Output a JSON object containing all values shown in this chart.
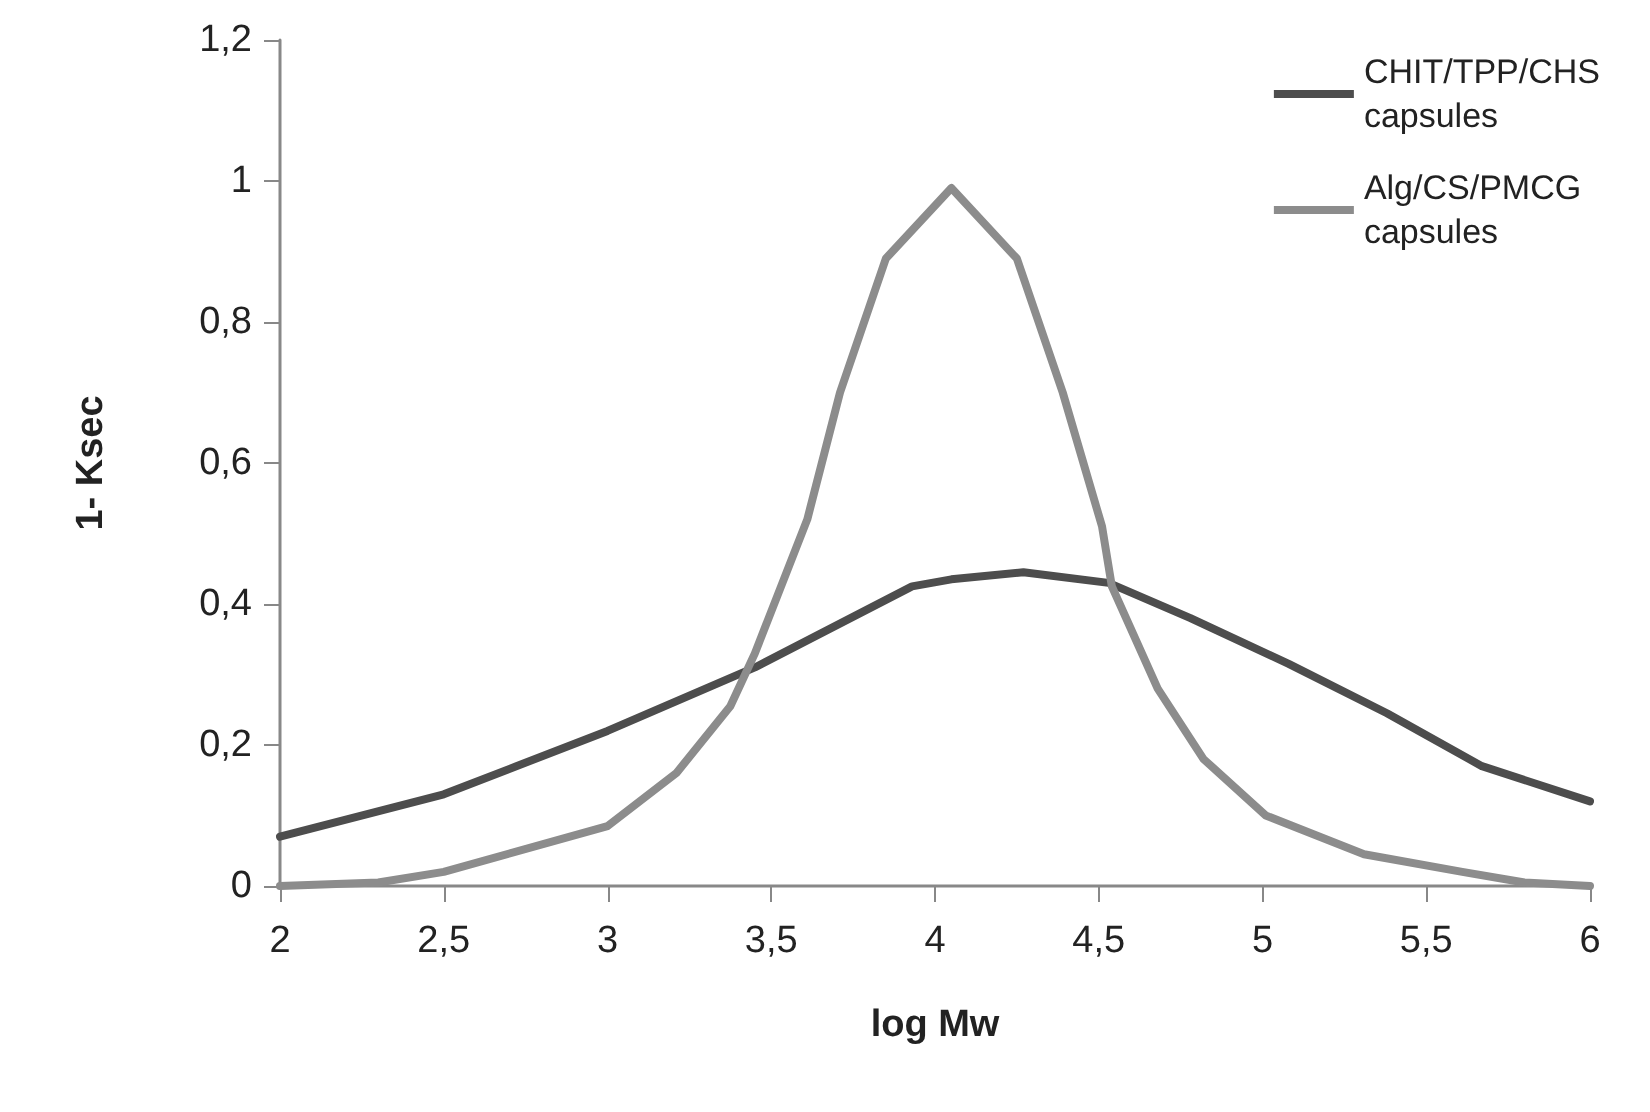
{
  "chart_data": {
    "type": "line",
    "xlabel": "log Mw",
    "ylabel": "1- Ksec",
    "xlim": [
      2,
      6
    ],
    "ylim": [
      0,
      1.2
    ],
    "xticks": [
      2,
      {
        "value": 2.5,
        "label": "2,5"
      },
      3,
      {
        "value": 3.5,
        "label": "3,5"
      },
      4,
      {
        "value": 4.5,
        "label": "4,5"
      },
      5,
      {
        "value": 5.5,
        "label": "5,5"
      },
      6
    ],
    "yticks": [
      0,
      {
        "value": 0.2,
        "label": "0,2"
      },
      {
        "value": 0.4,
        "label": "0,4"
      },
      {
        "value": 0.6,
        "label": "0,6"
      },
      {
        "value": 0.8,
        "label": "0,8"
      },
      1,
      {
        "value": 1.2,
        "label": "1,2"
      }
    ],
    "grid": false,
    "legend": "top right",
    "marker": "none",
    "line_style": "solid",
    "series": [
      {
        "name": "CHIT/TPP/CHS capsules",
        "color": "#4d4d4d",
        "x": [
          2,
          2.5,
          3,
          3.45,
          3.93,
          4.05,
          4.27,
          4.53,
          4.78,
          5.08,
          5.38,
          5.67,
          6
        ],
        "values": [
          0.07,
          0.13,
          0.22,
          0.31,
          0.425,
          0.435,
          0.445,
          0.43,
          0.38,
          0.315,
          0.245,
          0.17,
          0.12
        ]
      },
      {
        "name": "Alg/CS/PMCG capsules",
        "color": "#8c8c8c",
        "x": [
          2,
          2.3,
          2.5,
          3,
          3.21,
          3.375,
          3.45,
          3.53,
          3.61,
          3.71,
          3.85,
          4.05,
          4.25,
          4.39,
          4.51,
          4.54,
          4.68,
          4.82,
          5.01,
          5.31,
          5.61,
          5.8,
          6
        ],
        "values": [
          0,
          0.005,
          0.02,
          0.085,
          0.16,
          0.255,
          0.33,
          0.425,
          0.52,
          0.7,
          0.89,
          0.99,
          0.89,
          0.7,
          0.51,
          0.425,
          0.28,
          0.18,
          0.1,
          0.045,
          0.02,
          0.005,
          0
        ]
      }
    ]
  }
}
